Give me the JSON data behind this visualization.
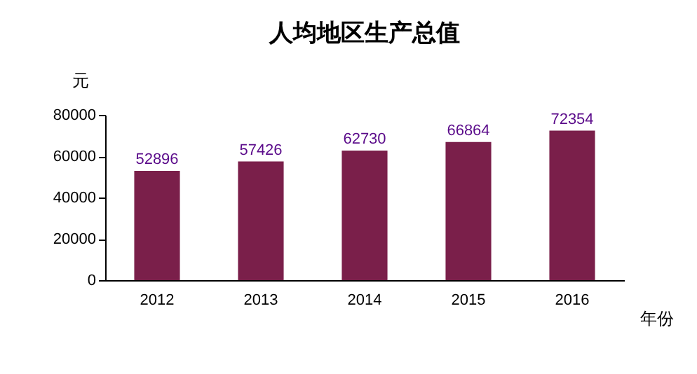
{
  "chart_data": {
    "type": "bar",
    "title": "人均地区生产总值",
    "ylabel": "元",
    "xlabel": "年份",
    "categories": [
      "2012",
      "2013",
      "2014",
      "2015",
      "2016"
    ],
    "values": [
      52896,
      57426,
      62730,
      66864,
      72354
    ],
    "color": "#7a1f4a",
    "ylim": [
      0,
      80000
    ],
    "yticks": [
      0,
      20000,
      40000,
      60000,
      80000
    ],
    "grid": false,
    "data_labels": true
  }
}
